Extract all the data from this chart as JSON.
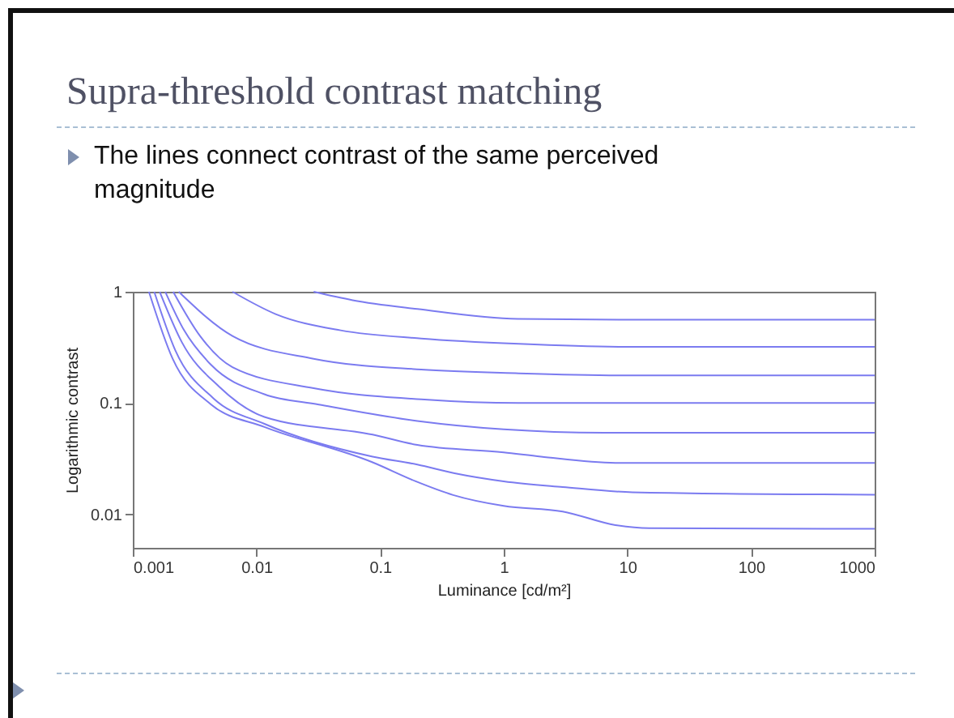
{
  "chart_data": {
    "type": "line",
    "title": "Supra-threshold contrast matching",
    "subtitle": "The lines connect contrast of the same perceived magnitude",
    "xlabel": "Luminance [cd/m²]",
    "ylabel": "Logarithmic contrast",
    "log": "xy",
    "xlim": [
      0.001,
      1000
    ],
    "xticks": [
      0.001,
      0.01,
      0.1,
      1,
      10,
      100,
      1000
    ],
    "ylim": [
      0.005,
      1
    ],
    "yticks": [
      0.01,
      0.1,
      1
    ],
    "series": [
      {
        "color": "#7b7bf0",
        "x": [
          0.029,
          0.06,
          0.2,
          1.3,
          10,
          1000
        ],
        "values": [
          1,
          0.84,
          0.7,
          0.57,
          0.56,
          0.56
        ]
      },
      {
        "color": "#7b7bf0",
        "x": [
          0.0064,
          0.0143,
          0.048,
          0.215,
          1.33,
          10,
          1000
        ],
        "values": [
          1,
          0.63,
          0.45,
          0.38,
          0.34,
          0.32,
          0.32
        ]
      },
      {
        "color": "#7b7bf0",
        "x": [
          0.00235,
          0.0064,
          0.029,
          0.215,
          1.33,
          10,
          1000
        ],
        "values": [
          1,
          0.4,
          0.25,
          0.2,
          0.185,
          0.177,
          0.177
        ]
      },
      {
        "color": "#7b7bf0",
        "x": [
          0.00212,
          0.0035,
          0.0064,
          0.029,
          0.215,
          1.33,
          1000
        ],
        "values": [
          1,
          0.4,
          0.21,
          0.136,
          0.108,
          0.1,
          0.1
        ]
      },
      {
        "color": "#7b7bf0",
        "x": [
          0.00183,
          0.0026,
          0.0043,
          0.0116,
          0.032,
          0.2,
          1,
          6.5,
          1000
        ],
        "values": [
          1,
          0.45,
          0.22,
          0.12,
          0.097,
          0.069,
          0.058,
          0.054,
          0.054
        ]
      },
      {
        "color": "#7b7bf0",
        "x": [
          0.00165,
          0.0025,
          0.005,
          0.0116,
          0.087,
          0.2,
          1,
          2,
          8,
          1000
        ],
        "values": [
          1,
          0.35,
          0.14,
          0.075,
          0.052,
          0.042,
          0.036,
          0.033,
          0.029,
          0.029
        ]
      },
      {
        "color": "#7b7bf0",
        "x": [
          0.00149,
          0.0022,
          0.0045,
          0.0116,
          0.087,
          0.2,
          0.4,
          1,
          3,
          11,
          1000
        ],
        "values": [
          1,
          0.3,
          0.11,
          0.065,
          0.033,
          0.028,
          0.0234,
          0.0198,
          0.0176,
          0.0158,
          0.015
        ]
      },
      {
        "color": "#7b7bf0",
        "x": [
          0.00135,
          0.0021,
          0.0043,
          0.0116,
          0.087,
          0.194,
          0.39,
          1,
          3,
          8,
          15,
          1000
        ],
        "values": [
          1,
          0.25,
          0.097,
          0.061,
          0.0293,
          0.0198,
          0.0149,
          0.0119,
          0.0106,
          0.008,
          0.0075,
          0.0074
        ]
      }
    ]
  }
}
